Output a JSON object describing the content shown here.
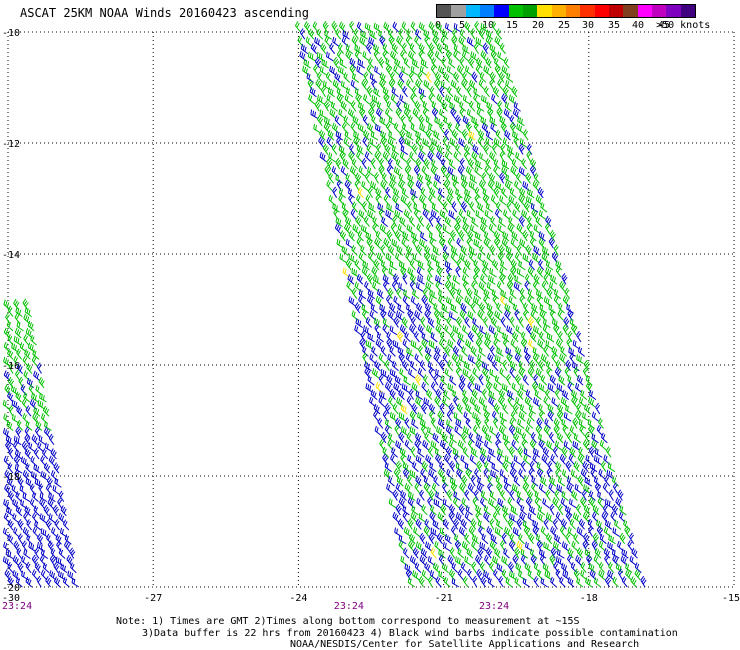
{
  "title": "ASCAT 25KM NOAA Winds 20160423 ascending",
  "legend": {
    "labels": [
      "0",
      "5",
      "10",
      "15",
      "20",
      "25",
      "30",
      "35",
      "40",
      "45",
      ">50 knots"
    ],
    "colors": [
      "#555555",
      "#a0a0a0",
      "#00b8ff",
      "#0080ff",
      "#0000ff",
      "#00c000",
      "#00a000",
      "#ffe000",
      "#ffb000",
      "#ff8000",
      "#ff3000",
      "#ff0000",
      "#c00000",
      "#804020",
      "#ff00ff",
      "#c000c0",
      "#8000c0",
      "#400080"
    ]
  },
  "map": {
    "lon_range": [
      -30,
      -15
    ],
    "lat_range": [
      -20,
      -10
    ],
    "lon_ticks": [
      "-30",
      "-27",
      "-24",
      "-21",
      "-18",
      "-15"
    ],
    "lat_ticks": [
      "-10",
      "-12",
      "-14",
      "-16",
      "-18",
      "-20"
    ],
    "gridlines": "dotted",
    "times": [
      "23:24",
      "23:24",
      "23:24"
    ],
    "swaths": [
      {
        "name": "west",
        "lon_left_at_top": -30,
        "lon_right_at_top": -29.6,
        "lat_top": -15.0,
        "lon_left_at_bottom": -30,
        "lon_right_at_bottom": -28.6,
        "lat_bottom": -20
      },
      {
        "name": "east",
        "lon_left_at_top": -24.0,
        "lon_right_at_top": -19.9,
        "lat_top": -10,
        "lon_left_at_bottom": -21.7,
        "lon_right_at_bottom": -16.9,
        "lat_bottom": -20
      }
    ],
    "barb_colors": {
      "low": "#0000c8",
      "mid": "#00c000",
      "high": "#ffe000"
    }
  },
  "note": {
    "line1": "Note: 1) Times are GMT 2)Times along bottom correspond to measurement at ~15S",
    "line2": "3)Data buffer is 22 hrs from 20160423 4) Black wind barbs indicate possible contamination"
  },
  "credit": "NOAA/NESDIS/Center for Satellite Applications and Research"
}
